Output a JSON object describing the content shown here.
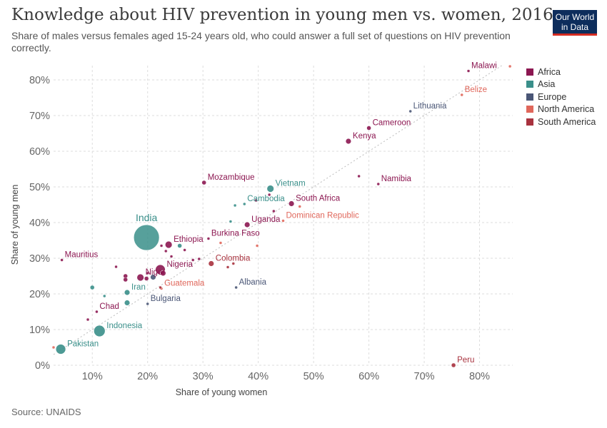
{
  "header": {
    "title": "Knowledge about HIV prevention in young men vs. women, 2016",
    "subtitle": "Share of males versus females aged 15-24 years old, who could answer a full set of questions on HIV prevention correctly."
  },
  "logo": {
    "line1": "Our World",
    "line2": "in Data"
  },
  "footer": {
    "source": "Source: UNAIDS"
  },
  "legend": [
    {
      "name": "Africa",
      "color": "#8c1751"
    },
    {
      "name": "Asia",
      "color": "#3a8f8a"
    },
    {
      "name": "Europe",
      "color": "#4a5676"
    },
    {
      "name": "North America",
      "color": "#e0675b"
    },
    {
      "name": "South America",
      "color": "#a8323e"
    }
  ],
  "chart_data": {
    "type": "scatter",
    "title": "Knowledge about HIV prevention in young men vs. women, 2016",
    "xlabel": "Share of young women",
    "ylabel": "Share of young men",
    "xlim": [
      3,
      86
    ],
    "ylim": [
      0,
      84
    ],
    "x_ticks": [
      10,
      20,
      30,
      40,
      50,
      60,
      70,
      80
    ],
    "y_ticks": [
      0,
      10,
      20,
      30,
      40,
      50,
      60,
      70,
      80
    ],
    "x_tick_labels": [
      "10%",
      "20%",
      "30%",
      "40%",
      "50%",
      "60%",
      "70%",
      "80%"
    ],
    "y_tick_labels": [
      "0%",
      "10%",
      "20%",
      "30%",
      "40%",
      "50%",
      "60%",
      "70%",
      "80%"
    ],
    "grid": true,
    "diagonal_reference": true,
    "legend_position": "right",
    "points": [
      {
        "label": "Malawi",
        "region": "Africa",
        "x": 78,
        "y": 82.5,
        "size": 2
      },
      {
        "label": "",
        "region": "North America",
        "x": 85.5,
        "y": 83.8,
        "size": 2
      },
      {
        "label": "Belize",
        "region": "North America",
        "x": 76.8,
        "y": 75.8,
        "size": 2
      },
      {
        "label": "Lithuania",
        "region": "Europe",
        "x": 67.5,
        "y": 71.2,
        "size": 2
      },
      {
        "label": "Cameroon",
        "region": "Africa",
        "x": 60,
        "y": 66.5,
        "size": 3
      },
      {
        "label": "Kenya",
        "region": "Africa",
        "x": 56.3,
        "y": 62.8,
        "size": 4
      },
      {
        "label": "Namibia",
        "region": "Africa",
        "x": 61.7,
        "y": 50.8,
        "size": 2
      },
      {
        "label": "",
        "region": "Africa",
        "x": 58.2,
        "y": 53,
        "size": 2
      },
      {
        "label": "Mozambique",
        "region": "Africa",
        "x": 30.2,
        "y": 51.2,
        "size": 3
      },
      {
        "label": "Vietnam",
        "region": "Asia",
        "x": 42.2,
        "y": 49.5,
        "size": 5
      },
      {
        "label": "Cambodia",
        "region": "Asia",
        "x": 37.5,
        "y": 45.2,
        "size": 2
      },
      {
        "label": "",
        "region": "Asia",
        "x": 35.8,
        "y": 44.8,
        "size": 2
      },
      {
        "label": "",
        "region": "Africa",
        "x": 39.6,
        "y": 46.2,
        "size": 2
      },
      {
        "label": "",
        "region": "Africa",
        "x": 42,
        "y": 47.8,
        "size": 2
      },
      {
        "label": "South Africa",
        "region": "Africa",
        "x": 46,
        "y": 45.3,
        "size": 4
      },
      {
        "label": "",
        "region": "Africa",
        "x": 42.8,
        "y": 43.2,
        "size": 2
      },
      {
        "label": "Dominican Republic",
        "region": "North America",
        "x": 44.5,
        "y": 40.5,
        "size": 2
      },
      {
        "label": "",
        "region": "North America",
        "x": 47.5,
        "y": 44.5,
        "size": 2
      },
      {
        "label": "Uganda",
        "region": "Africa",
        "x": 38,
        "y": 39.4,
        "size": 4
      },
      {
        "label": "",
        "region": "Asia",
        "x": 35,
        "y": 40.3,
        "size": 2
      },
      {
        "label": "India",
        "region": "Asia",
        "x": 19.8,
        "y": 35.8,
        "size": 18
      },
      {
        "label": "Ethiopia",
        "region": "Africa",
        "x": 23.8,
        "y": 33.8,
        "size": 5
      },
      {
        "label": "",
        "region": "Africa",
        "x": 22.5,
        "y": 33.5,
        "size": 2
      },
      {
        "label": "",
        "region": "Asia",
        "x": 25.8,
        "y": 33.5,
        "size": 3
      },
      {
        "label": "",
        "region": "Africa",
        "x": 26.7,
        "y": 32.3,
        "size": 2
      },
      {
        "label": "",
        "region": "Africa",
        "x": 23.3,
        "y": 32,
        "size": 2
      },
      {
        "label": "",
        "region": "Africa",
        "x": 24.3,
        "y": 30.5,
        "size": 2
      },
      {
        "label": "",
        "region": "Africa",
        "x": 28.2,
        "y": 29.5,
        "size": 2
      },
      {
        "label": "",
        "region": "Africa",
        "x": 29.3,
        "y": 29.8,
        "size": 2
      },
      {
        "label": "Burkina Faso",
        "region": "Africa",
        "x": 31,
        "y": 35.5,
        "size": 2
      },
      {
        "label": "",
        "region": "North America",
        "x": 33.2,
        "y": 34.3,
        "size": 2
      },
      {
        "label": "",
        "region": "North America",
        "x": 39.8,
        "y": 33.5,
        "size": 2
      },
      {
        "label": "Colombia",
        "region": "South America",
        "x": 31.5,
        "y": 28.5,
        "size": 4
      },
      {
        "label": "",
        "region": "South America",
        "x": 34.5,
        "y": 27.5,
        "size": 2
      },
      {
        "label": "",
        "region": "South America",
        "x": 35.5,
        "y": 28.5,
        "size": 2
      },
      {
        "label": "Nigeria",
        "region": "Africa",
        "x": 22.3,
        "y": 26.8,
        "size": 7
      },
      {
        "label": "",
        "region": "Africa",
        "x": 20,
        "y": 25.8,
        "size": 2
      },
      {
        "label": "",
        "region": "Africa",
        "x": 22.8,
        "y": 25.8,
        "size": 4
      },
      {
        "label": "",
        "region": "Europe",
        "x": 21,
        "y": 24.7,
        "size": 4
      },
      {
        "label": "Niger",
        "region": "Africa",
        "x": 18.7,
        "y": 24.6,
        "size": 5
      },
      {
        "label": "",
        "region": "Africa",
        "x": 16,
        "y": 25,
        "size": 3
      },
      {
        "label": "",
        "region": "Africa",
        "x": 16,
        "y": 24,
        "size": 3
      },
      {
        "label": "",
        "region": "Africa",
        "x": 14.3,
        "y": 27.6,
        "size": 2
      },
      {
        "label": "",
        "region": "Africa",
        "x": 19.8,
        "y": 24.3,
        "size": 3
      },
      {
        "label": "Mauritius",
        "region": "Africa",
        "x": 4.5,
        "y": 29.5,
        "size": 2
      },
      {
        "label": "Guatemala",
        "region": "North America",
        "x": 22.5,
        "y": 21.5,
        "size": 2
      },
      {
        "label": "",
        "region": "South America",
        "x": 22.3,
        "y": 21.8,
        "size": 2
      },
      {
        "label": "Albania",
        "region": "Europe",
        "x": 36,
        "y": 21.8,
        "size": 2
      },
      {
        "label": "Iran",
        "region": "Asia",
        "x": 16.3,
        "y": 20.4,
        "size": 4
      },
      {
        "label": "",
        "region": "Asia",
        "x": 10,
        "y": 21.8,
        "size": 3
      },
      {
        "label": "",
        "region": "Asia",
        "x": 12.2,
        "y": 19.4,
        "size": 2
      },
      {
        "label": "",
        "region": "Asia",
        "x": 16.3,
        "y": 17.5,
        "size": 4
      },
      {
        "label": "Bulgaria",
        "region": "Europe",
        "x": 20,
        "y": 17.2,
        "size": 2
      },
      {
        "label": "Chad",
        "region": "Africa",
        "x": 10.8,
        "y": 15,
        "size": 2
      },
      {
        "label": "",
        "region": "Africa",
        "x": 9.2,
        "y": 12.8,
        "size": 2
      },
      {
        "label": "Indonesia",
        "region": "Asia",
        "x": 11.3,
        "y": 9.6,
        "size": 8
      },
      {
        "label": "Pakistan",
        "region": "Asia",
        "x": 4.3,
        "y": 4.5,
        "size": 7
      },
      {
        "label": "",
        "region": "North America",
        "x": 3,
        "y": 5,
        "size": 2
      },
      {
        "label": "Peru",
        "region": "South America",
        "x": 75.3,
        "y": 0,
        "size": 3
      }
    ]
  }
}
